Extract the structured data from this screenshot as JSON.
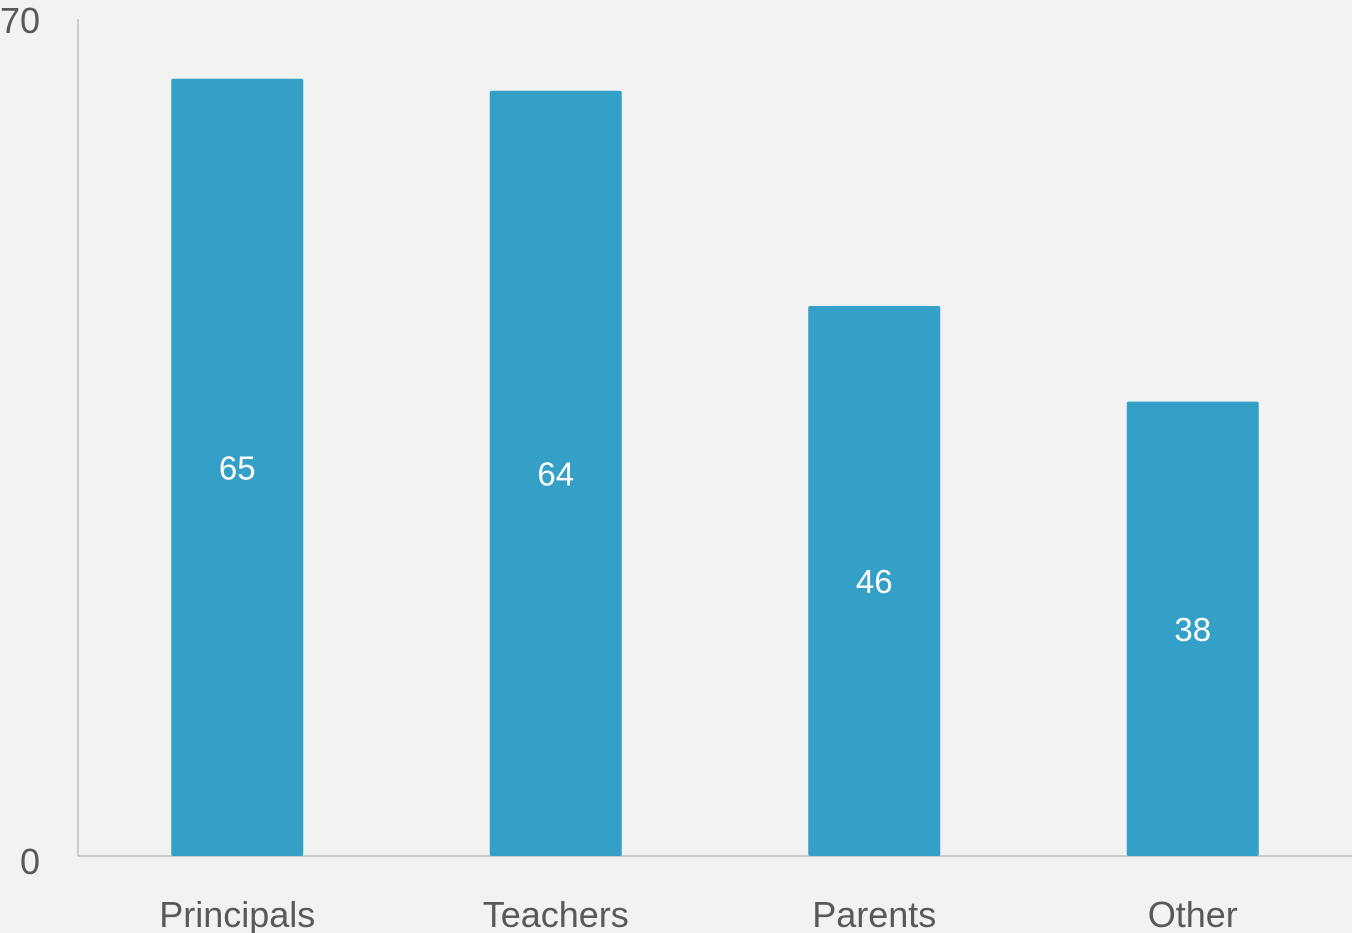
{
  "chart_data": {
    "type": "bar",
    "title": "",
    "xlabel": "",
    "ylabel": "",
    "categories": [
      "Principals",
      "Teachers",
      "Parents",
      "Other"
    ],
    "values": [
      65,
      64,
      46,
      38
    ],
    "ylim": [
      0,
      70
    ],
    "yticks": [
      "0",
      "70"
    ],
    "data_labels": [
      "65",
      "64",
      "46",
      "38"
    ],
    "grid": false,
    "legend": "none",
    "colors": {
      "bar": "#34a0c8",
      "background": "#f2f2f2",
      "axis": "#bfbfbf",
      "tick_text": "#595959",
      "data_label": "#ffffff"
    }
  }
}
